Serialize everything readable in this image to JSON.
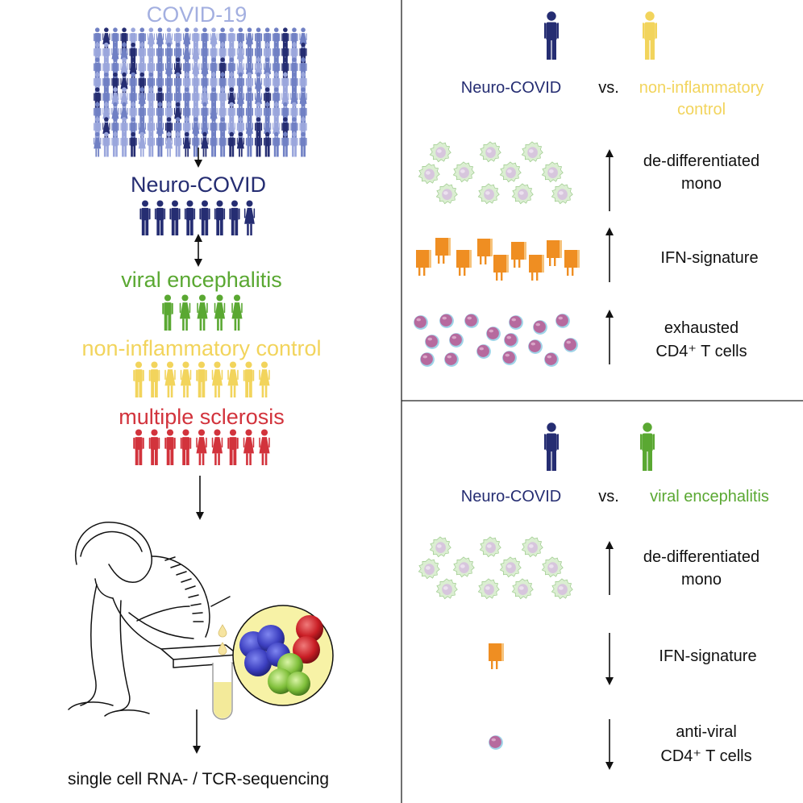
{
  "colors": {
    "covid_light": "#9aa6dc",
    "covid_mid": "#7080c4",
    "neuro": "#252d72",
    "viral": "#5aa832",
    "control": "#f2d45c",
    "ms": "#d2333c",
    "mono": "#c3e3b6",
    "ifn": "#ee8a1c",
    "tcell": "#b7679c",
    "text": "#111111"
  },
  "left": {
    "covid_title": "COVID-19",
    "neuro_title": "Neuro-COVID",
    "viral_title": "viral encephalitis",
    "control_title": "non-inflammatory control",
    "ms_title": "multiple sclerosis",
    "bottom_label": "single cell RNA- / TCR-sequencing"
  },
  "top_panel": {
    "left_group": "Neuro-COVID",
    "vs": "vs.",
    "right_group_line1": "non-inflammatory",
    "right_group_line2": "control",
    "rows": [
      {
        "label_line1": "de-differentiated",
        "label_line2": "mono",
        "direction": "up",
        "icon": "monocyte-icon"
      },
      {
        "label_line1": "IFN-signature",
        "label_line2": "",
        "direction": "up",
        "icon": "ifn-receptor-icon"
      },
      {
        "label_line1": "exhausted",
        "label_line2": "CD4⁺ T cells",
        "direction": "up",
        "icon": "t-cell-icon"
      }
    ]
  },
  "bottom_panel": {
    "left_group": "Neuro-COVID",
    "vs": "vs.",
    "right_group_line1": "viral encephalitis",
    "rows": [
      {
        "label_line1": "de-differentiated",
        "label_line2": "mono",
        "direction": "up",
        "icon": "monocyte-icon"
      },
      {
        "label_line1": "IFN-signature",
        "label_line2": "",
        "direction": "down",
        "icon": "ifn-receptor-icon"
      },
      {
        "label_line1": "anti-viral",
        "label_line2": "CD4⁺ T cells",
        "direction": "down",
        "icon": "t-cell-icon"
      }
    ]
  }
}
